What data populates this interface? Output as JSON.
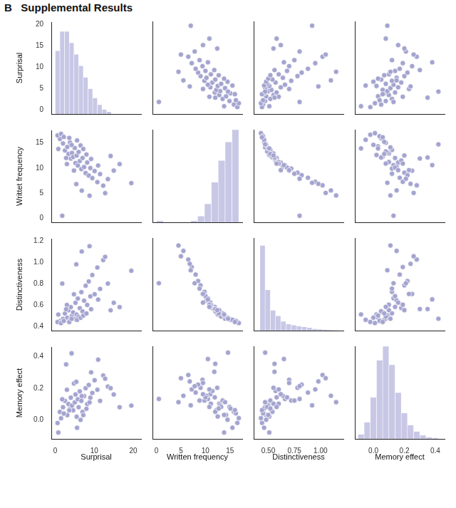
{
  "chart_data": {
    "type": "pair_plot",
    "title": "B   Supplemental Results",
    "color": "#a4a4d0",
    "hist_color": "#c8c8e6",
    "marker": "circle",
    "grid": false,
    "variables": [
      {
        "xlabel": "Surprisal",
        "ylabel": "Surprisal",
        "xlim": [
          -1,
          22
        ],
        "xticks": [
          0,
          10,
          20
        ],
        "ylim": [
          -1,
          20.5
        ],
        "yticks": [
          0,
          5,
          10,
          15,
          20
        ],
        "values": [
          1.2,
          2.0,
          2.5,
          3.1,
          3.4,
          3.8,
          4.0,
          4.3,
          4.6,
          5.0,
          5.2,
          5.5,
          5.8,
          6.0,
          6.3,
          6.7,
          7.0,
          7.4,
          7.8,
          8.2,
          8.6,
          9.0,
          9.5,
          10.1,
          10.8,
          11.5,
          12.3,
          13.5,
          15.0,
          19.5,
          0.6,
          1.5,
          2.2,
          3.0,
          4.8,
          5.6,
          6.5,
          7.2,
          8.0,
          9.2,
          3.6,
          2.8,
          4.2,
          11.0,
          6.8,
          8.8,
          5.4,
          12.8,
          1.8,
          16.5,
          0.8,
          14.2
        ],
        "bins": [
          0,
          1.2,
          2.4,
          3.6,
          4.8,
          6.0,
          7.2,
          8.4,
          9.6,
          10.8,
          12.0,
          13.2,
          14.4
        ],
        "counts": [
          55,
          72,
          72,
          62,
          52,
          42,
          32,
          22,
          14,
          8,
          4,
          2
        ]
      },
      {
        "xlabel": "Written frequency",
        "ylabel": "Writtet frequency",
        "xlim": [
          -0.8,
          17.5
        ],
        "xticks": [
          0,
          5,
          10,
          15
        ],
        "ylim": [
          -0.8,
          17.5
        ],
        "yticks": [
          0,
          5,
          10,
          15
        ],
        "values": [
          15.8,
          14.9,
          13.5,
          14.2,
          12.8,
          15.1,
          11.9,
          13.0,
          12.2,
          14.0,
          11.0,
          12.5,
          10.5,
          13.2,
          11.4,
          9.8,
          12.0,
          10.2,
          9.0,
          11.1,
          8.5,
          10.0,
          8.0,
          9.4,
          7.2,
          8.8,
          6.5,
          7.8,
          9.5,
          7.0,
          16.5,
          16.8,
          16.2,
          10.8,
          9.5,
          15.5,
          14.5,
          13.8,
          12.7,
          11.8,
          16.0,
          12.0,
          14.6,
          10.5,
          5.5,
          4.5,
          6.8,
          5.0,
          0.5,
          10.8,
          13.8,
          12.4
        ],
        "bins": [
          0,
          1.4,
          2.8,
          4.2,
          5.6,
          7.0,
          8.4,
          9.8,
          11.2,
          12.6,
          14.0,
          15.4,
          16.8
        ],
        "counts": [
          1,
          0,
          0,
          0,
          0,
          1,
          4,
          12,
          26,
          40,
          52,
          60
        ]
      },
      {
        "xlabel": "Distinctiveness",
        "ylabel": "Distinctiveness",
        "xlim": [
          0.36,
          1.22
        ],
        "xticks": [
          {
            "value": 0.5,
            "label": "0.50"
          },
          {
            "value": 0.75,
            "label": "0.75"
          },
          {
            "value": 1,
            "label": "1.00"
          }
        ],
        "ylim": [
          0.36,
          1.22
        ],
        "yticks": [
          0.4,
          0.6,
          0.8,
          {
            "value": 1,
            "label": "1.0"
          },
          1.2
        ],
        "values": [
          0.45,
          0.47,
          0.52,
          0.48,
          0.55,
          0.46,
          0.58,
          0.5,
          0.53,
          0.47,
          0.62,
          0.51,
          0.66,
          0.49,
          0.57,
          0.72,
          0.54,
          0.64,
          0.78,
          0.6,
          0.82,
          0.68,
          0.88,
          0.7,
          0.95,
          0.75,
          1.02,
          0.8,
          0.62,
          0.92,
          0.44,
          0.43,
          0.45,
          0.6,
          0.7,
          0.46,
          0.48,
          0.5,
          0.52,
          0.56,
          0.44,
          0.56,
          0.47,
          0.65,
          1.1,
          1.15,
          0.98,
          1.05,
          0.8,
          0.58,
          0.51,
          0.55
        ],
        "bins": [
          0.42,
          0.47,
          0.52,
          0.57,
          0.62,
          0.67,
          0.72,
          0.77,
          0.82,
          0.87,
          0.92,
          0.97,
          1.02,
          1.07,
          1.12,
          1.17
        ],
        "counts": [
          230,
          110,
          55,
          40,
          25,
          18,
          15,
          12,
          10,
          8,
          5,
          4,
          3,
          2,
          1
        ]
      },
      {
        "xlabel": "Memory effect",
        "ylabel": "Memory effect",
        "xlim": [
          -0.12,
          0.46
        ],
        "xticks": [
          {
            "value": 0,
            "label": "0.0"
          },
          0.2,
          0.4
        ],
        "ylim": [
          -0.12,
          0.46
        ],
        "yticks": [
          {
            "value": 0,
            "label": "0.0"
          },
          0.2,
          0.4
        ],
        "values": [
          0.05,
          0.08,
          0.12,
          0.03,
          0.1,
          0.07,
          0.14,
          0.09,
          0.06,
          0.11,
          0.16,
          0.02,
          0.13,
          0.08,
          0.18,
          0.12,
          0.05,
          0.15,
          0.2,
          0.1,
          0.22,
          0.14,
          0.17,
          0.25,
          0.19,
          0.12,
          0.28,
          0.21,
          0.16,
          0.09,
          -0.02,
          0.01,
          0.04,
          0.19,
          0.23,
          -0.05,
          0.0,
          0.03,
          0.07,
          0.3,
          0.06,
          0.35,
          0.42,
          0.38,
          0.15,
          0.11,
          0.24,
          0.26,
          0.13,
          0.08,
          -0.08,
          0.2
        ],
        "bins": [
          -0.1,
          -0.06,
          -0.02,
          0.02,
          0.06,
          0.1,
          0.14,
          0.18,
          0.22,
          0.26,
          0.3,
          0.34,
          0.38,
          0.42
        ],
        "counts": [
          5,
          18,
          45,
          85,
          100,
          80,
          50,
          28,
          15,
          8,
          4,
          2,
          1
        ]
      }
    ]
  }
}
